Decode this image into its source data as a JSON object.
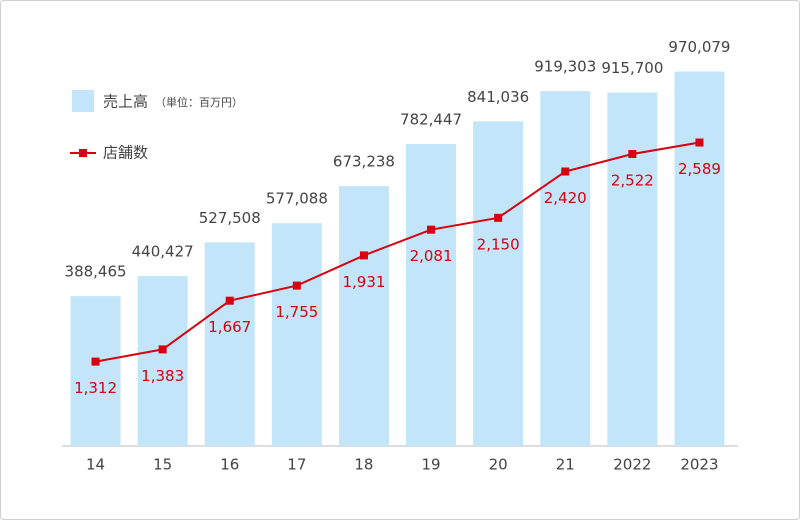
{
  "chart_data": {
    "type": "bar",
    "categories": [
      "14",
      "15",
      "16",
      "17",
      "18",
      "19",
      "20",
      "21",
      "2022",
      "2023"
    ],
    "series": [
      {
        "name": "売上高",
        "type": "bar",
        "color": "#c3e5fa",
        "values": [
          388465,
          440427,
          527508,
          577088,
          673238,
          782447,
          841036,
          919303,
          915700,
          970079
        ],
        "value_labels": [
          "388,465",
          "440,427",
          "527,508",
          "577,088",
          "673,238",
          "782,447",
          "841,036",
          "919,303",
          "915,700",
          "970,079"
        ]
      },
      {
        "name": "店舗数",
        "type": "line",
        "axis": "y2",
        "color": "#d7000f",
        "values": [
          1312,
          1383,
          1667,
          1755,
          1931,
          2081,
          2150,
          2420,
          2522,
          2589
        ],
        "value_labels": [
          "1,312",
          "1,383",
          "1,667",
          "1,755",
          "1,931",
          "2,081",
          "2,150",
          "2,420",
          "2,522",
          "2,589"
        ]
      }
    ],
    "unit_note": "（単位：百万円）",
    "ylim": [
      0,
      1000000
    ],
    "y2lim": [
      820,
      3070
    ]
  }
}
